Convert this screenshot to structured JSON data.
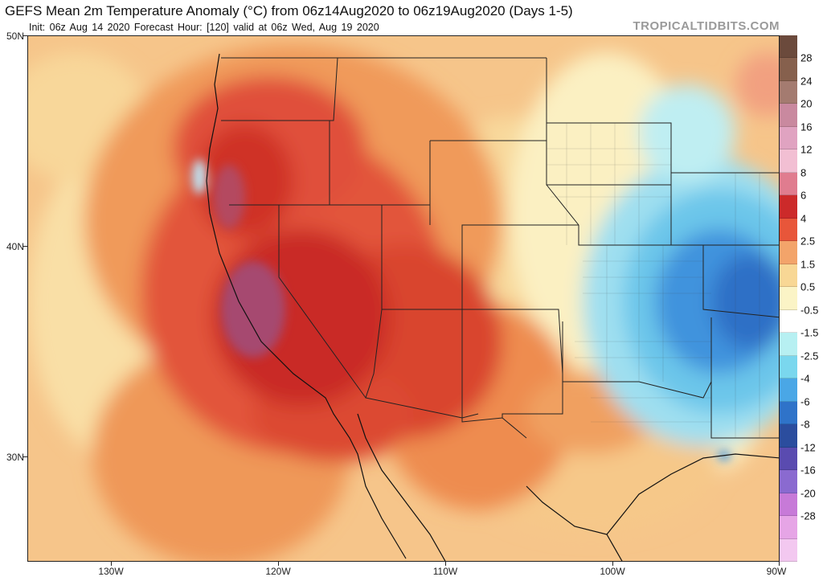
{
  "header": {
    "title": "GEFS Mean 2m Temperature Anomaly (°C) from 06z14Aug2020 to 06z19Aug2020 (Days 1-5)",
    "subtitle": "Init: 06z Aug 14 2020   Forecast Hour: [120]   valid at 06z Wed, Aug 19 2020",
    "brand": "TROPICALTIDBITS.COM"
  },
  "axes": {
    "lat_labels": [
      "50N",
      "40N",
      "30N"
    ],
    "lon_labels": [
      "130W",
      "120W",
      "110W",
      "100W",
      "90W"
    ]
  },
  "colorbar": {
    "labels": [
      "28",
      "24",
      "20",
      "16",
      "12",
      "8",
      "6",
      "4",
      "2.5",
      "1.5",
      "0.5",
      "-0.5",
      "-1.5",
      "-2.5",
      "-4",
      "-6",
      "-8",
      "-12",
      "-16",
      "-20",
      "-28"
    ],
    "colors": [
      "#6b4a3c",
      "#86604d",
      "#a47b70",
      "#c9899f",
      "#e0a3c1",
      "#f2bfd3",
      "#e07c8f",
      "#cc2a2a",
      "#e8563a",
      "#f3a46a",
      "#f8d795",
      "#fbf4c6",
      "#ffffff",
      "#b7f0f2",
      "#7ad7ee",
      "#4aa7e6",
      "#2f73c9",
      "#2b4d9e",
      "#5a4bb0",
      "#8a6ad0",
      "#c77ad8",
      "#e6a5e6",
      "#f3c8f0"
    ]
  },
  "map": {
    "region": "Western and Central United States",
    "field": "2m temperature anomaly",
    "hot_anomaly_color": "#cc2a2a",
    "cool_anomaly_color": "#2f73c9"
  }
}
